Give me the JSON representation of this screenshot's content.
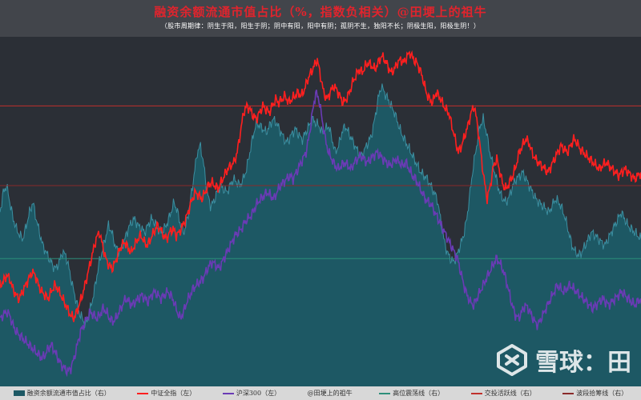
{
  "header": {
    "title": "融资余额流通市值占比（%，指数负相关）@田埂上的祖牛",
    "subtitle": "（股市周期律：阴生于阳，阳生于阴；阴中有阳，阳中有阴；孤阴不生，独阳不长；阴极生阳，阳极生阴！）"
  },
  "watermark": {
    "text": "雪球：田",
    "icon": "snowball-logo-icon"
  },
  "colors": {
    "background": "#2b2f36",
    "area_fill": "#1d5864",
    "area_line": "#3b8fa1",
    "csi_all": "#ff1f1f",
    "hs300": "#6a3bb5",
    "high_band": "#c0312c",
    "active_line": "#8a2a2a",
    "equilibrium": "#2d8f7a"
  },
  "chart_data": {
    "type": "area",
    "title": "融资余额流通市值占比（%，指数负相关）@田埂上的祖牛",
    "xlabel": "",
    "ylabel": "",
    "x_points": 200,
    "series": [
      {
        "name": "融资余额流通市值占比（右）",
        "type": "area",
        "color": "#1d5864",
        "axis": "right",
        "values": [
          0.52,
          0.58,
          0.6,
          0.55,
          0.5,
          0.47,
          0.45,
          0.44,
          0.48,
          0.52,
          0.55,
          0.5,
          0.46,
          0.42,
          0.4,
          0.38,
          0.36,
          0.35,
          0.37,
          0.4,
          0.39,
          0.35,
          0.3,
          0.26,
          0.22,
          0.2,
          0.18,
          0.21,
          0.25,
          0.3,
          0.36,
          0.4,
          0.44,
          0.48,
          0.46,
          0.42,
          0.4,
          0.41,
          0.44,
          0.47,
          0.49,
          0.5,
          0.48,
          0.47,
          0.46,
          0.48,
          0.5,
          0.49,
          0.47,
          0.46,
          0.47,
          0.49,
          0.52,
          0.55,
          0.52,
          0.48,
          0.46,
          0.5,
          0.56,
          0.63,
          0.7,
          0.72,
          0.66,
          0.58,
          0.54,
          0.55,
          0.58,
          0.6,
          0.59,
          0.58,
          0.6,
          0.62,
          0.61,
          0.6,
          0.62,
          0.65,
          0.7,
          0.75,
          0.79,
          0.78,
          0.77,
          0.76,
          0.78,
          0.8,
          0.79,
          0.77,
          0.75,
          0.73,
          0.74,
          0.76,
          0.77,
          0.75,
          0.74,
          0.76,
          0.78,
          0.8,
          0.79,
          0.78,
          0.76,
          0.77,
          0.78,
          0.74,
          0.7,
          0.72,
          0.76,
          0.78,
          0.76,
          0.74,
          0.72,
          0.7,
          0.69,
          0.71,
          0.73,
          0.75,
          0.8,
          0.86,
          0.9,
          0.88,
          0.86,
          0.84,
          0.82,
          0.79,
          0.76,
          0.74,
          0.72,
          0.7,
          0.68,
          0.66,
          0.64,
          0.63,
          0.62,
          0.6,
          0.58,
          0.56,
          0.5,
          0.44,
          0.4,
          0.38,
          0.37,
          0.39,
          0.42,
          0.45,
          0.5,
          0.58,
          0.66,
          0.72,
          0.78,
          0.8,
          0.76,
          0.7,
          0.66,
          0.62,
          0.58,
          0.56,
          0.55,
          0.57,
          0.6,
          0.62,
          0.63,
          0.64,
          0.62,
          0.6,
          0.58,
          0.56,
          0.55,
          0.54,
          0.53,
          0.52,
          0.54,
          0.56,
          0.55,
          0.53,
          0.5,
          0.46,
          0.42,
          0.4,
          0.39,
          0.4,
          0.42,
          0.44,
          0.46,
          0.45,
          0.44,
          0.43,
          0.42,
          0.44,
          0.46,
          0.48,
          0.5,
          0.52,
          0.5,
          0.48,
          0.47,
          0.46,
          0.45,
          0.44
        ]
      },
      {
        "name": "中证全指（左）",
        "type": "line",
        "color": "#ff1f1f",
        "axis": "left",
        "values": [
          0.3,
          0.31,
          0.33,
          0.32,
          0.29,
          0.27,
          0.26,
          0.28,
          0.3,
          0.32,
          0.34,
          0.33,
          0.3,
          0.28,
          0.27,
          0.26,
          0.28,
          0.3,
          0.29,
          0.27,
          0.25,
          0.23,
          0.21,
          0.2,
          0.22,
          0.25,
          0.28,
          0.32,
          0.36,
          0.4,
          0.44,
          0.46,
          0.42,
          0.38,
          0.36,
          0.35,
          0.37,
          0.4,
          0.42,
          0.43,
          0.41,
          0.4,
          0.42,
          0.44,
          0.45,
          0.43,
          0.42,
          0.44,
          0.46,
          0.48,
          0.47,
          0.45,
          0.44,
          0.46,
          0.47,
          0.45,
          0.46,
          0.48,
          0.5,
          0.53,
          0.56,
          0.58,
          0.57,
          0.56,
          0.58,
          0.6,
          0.61,
          0.6,
          0.59,
          0.61,
          0.63,
          0.65,
          0.66,
          0.67,
          0.7,
          0.76,
          0.82,
          0.84,
          0.83,
          0.81,
          0.8,
          0.82,
          0.84,
          0.83,
          0.82,
          0.84,
          0.86,
          0.85,
          0.86,
          0.87,
          0.85,
          0.86,
          0.87,
          0.88,
          0.87,
          0.89,
          0.92,
          0.94,
          0.96,
          0.98,
          0.93,
          0.88,
          0.86,
          0.88,
          0.9,
          0.89,
          0.87,
          0.85,
          0.86,
          0.88,
          0.91,
          0.93,
          0.95,
          0.94,
          0.96,
          0.97,
          0.96,
          0.95,
          0.97,
          0.99,
          0.98,
          0.96,
          0.94,
          0.95,
          0.97,
          0.98,
          0.97,
          0.99,
          1.0,
          0.98,
          0.97,
          0.95,
          0.92,
          0.88,
          0.86,
          0.85,
          0.88,
          0.87,
          0.85,
          0.83,
          0.82,
          0.78,
          0.74,
          0.7,
          0.72,
          0.75,
          0.78,
          0.82,
          0.84,
          0.78,
          0.7,
          0.62,
          0.56,
          0.6,
          0.66,
          0.68,
          0.64,
          0.6,
          0.59,
          0.61,
          0.63,
          0.66,
          0.7,
          0.72,
          0.74,
          0.73,
          0.7,
          0.68,
          0.67,
          0.66,
          0.65,
          0.64,
          0.66,
          0.68,
          0.7,
          0.72,
          0.71,
          0.7,
          0.72,
          0.74,
          0.73,
          0.71,
          0.7,
          0.69,
          0.68,
          0.67,
          0.66,
          0.65,
          0.66,
          0.67,
          0.66,
          0.65,
          0.64,
          0.63,
          0.64,
          0.65,
          0.64,
          0.63,
          0.62,
          0.63,
          0.64
        ]
      },
      {
        "name": "沪深300（左）",
        "type": "line",
        "color": "#6a3bb5",
        "axis": "left",
        "values": [
          0.2,
          0.21,
          0.22,
          0.21,
          0.18,
          0.16,
          0.15,
          0.14,
          0.13,
          0.12,
          0.11,
          0.1,
          0.09,
          0.08,
          0.09,
          0.11,
          0.12,
          0.1,
          0.08,
          0.06,
          0.05,
          0.04,
          0.05,
          0.08,
          0.12,
          0.16,
          0.18,
          0.2,
          0.22,
          0.21,
          0.2,
          0.21,
          0.23,
          0.22,
          0.2,
          0.19,
          0.2,
          0.22,
          0.24,
          0.26,
          0.25,
          0.24,
          0.25,
          0.26,
          0.27,
          0.26,
          0.25,
          0.27,
          0.28,
          0.27,
          0.26,
          0.27,
          0.28,
          0.27,
          0.25,
          0.22,
          0.2,
          0.22,
          0.25,
          0.27,
          0.29,
          0.3,
          0.31,
          0.32,
          0.34,
          0.36,
          0.37,
          0.36,
          0.35,
          0.37,
          0.39,
          0.41,
          0.43,
          0.45,
          0.46,
          0.47,
          0.49,
          0.5,
          0.51,
          0.53,
          0.55,
          0.56,
          0.57,
          0.58,
          0.57,
          0.56,
          0.58,
          0.6,
          0.61,
          0.62,
          0.63,
          0.62,
          0.64,
          0.66,
          0.68,
          0.7,
          0.75,
          0.82,
          0.88,
          0.86,
          0.8,
          0.74,
          0.7,
          0.68,
          0.66,
          0.65,
          0.66,
          0.67,
          0.66,
          0.65,
          0.67,
          0.68,
          0.69,
          0.68,
          0.67,
          0.68,
          0.69,
          0.7,
          0.69,
          0.68,
          0.67,
          0.66,
          0.67,
          0.68,
          0.67,
          0.66,
          0.67,
          0.65,
          0.63,
          0.62,
          0.6,
          0.58,
          0.56,
          0.55,
          0.54,
          0.52,
          0.5,
          0.48,
          0.46,
          0.44,
          0.42,
          0.4,
          0.38,
          0.34,
          0.3,
          0.27,
          0.25,
          0.24,
          0.26,
          0.28,
          0.3,
          0.32,
          0.34,
          0.36,
          0.38,
          0.37,
          0.35,
          0.32,
          0.28,
          0.24,
          0.21,
          0.2,
          0.22,
          0.24,
          0.23,
          0.21,
          0.19,
          0.18,
          0.2,
          0.22,
          0.24,
          0.26,
          0.28,
          0.3,
          0.29,
          0.28,
          0.29,
          0.3,
          0.29,
          0.28,
          0.27,
          0.26,
          0.25,
          0.24,
          0.23,
          0.24,
          0.25,
          0.26,
          0.25,
          0.24,
          0.25,
          0.26,
          0.27,
          0.28,
          0.27,
          0.26,
          0.25,
          0.24,
          0.25,
          0.26
        ]
      },
      {
        "name": "高位震荡线（右）",
        "type": "hline",
        "color": "#c0312c",
        "axis": "right",
        "value": 0.84
      },
      {
        "name": "交投活跃线（右）",
        "type": "hline",
        "color": "#8a2a2a",
        "axis": "right",
        "value": 0.6
      },
      {
        "name": "波段拾筹线（右）",
        "type": "hline",
        "color": "#2d8f7a",
        "axis": "right",
        "value": 0.38
      }
    ],
    "legend": [
      {
        "label": "融资余额流通市值占比（右）",
        "swatch": "box",
        "color": "#1d5864"
      },
      {
        "label": "中证全指（左）",
        "swatch": "line",
        "color": "#ff1f1f"
      },
      {
        "label": "沪深300（左）",
        "swatch": "line",
        "color": "#6a3bb5"
      },
      {
        "label": "@田埂上的祖牛",
        "swatch": "none",
        "color": ""
      },
      {
        "label": "高位震荡线（右）",
        "swatch": "line",
        "color": "#2d8f7a"
      },
      {
        "label": "交投活跃线（右）",
        "swatch": "line",
        "color": "#c0312c"
      },
      {
        "label": "波段拾筹线（右）",
        "swatch": "line",
        "color": "#8a2a2a"
      }
    ],
    "legend_position": "bottom",
    "grid": false
  }
}
